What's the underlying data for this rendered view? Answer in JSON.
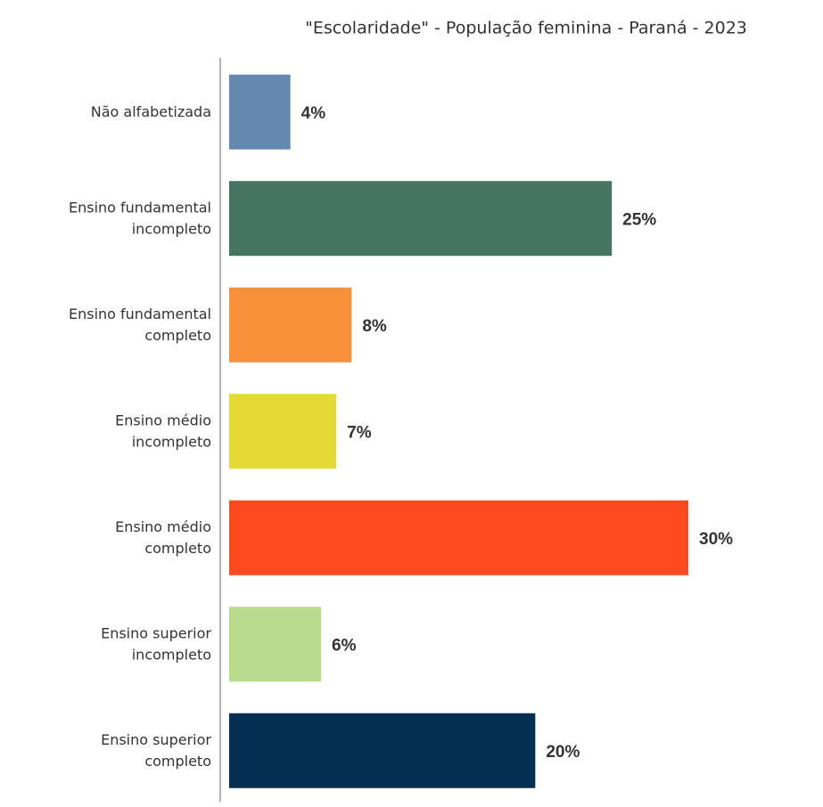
{
  "chart_data": {
    "type": "bar",
    "orientation": "horizontal",
    "title": "\"Escolaridade\" - População feminina - Paraná - 2023",
    "categories": [
      "Não alfabetizada",
      "Ensino fundamental\nincompleto",
      "Ensino fundamental\ncompleto",
      "Ensino médio\nincompleto",
      "Ensino médio\ncompleto",
      "Ensino superior\nincompleto",
      "Ensino superior\ncompleto"
    ],
    "values": [
      4,
      25,
      8,
      7,
      30,
      6,
      20
    ],
    "value_labels": [
      "4%",
      "25%",
      "8%",
      "7%",
      "30%",
      "6%",
      "20%"
    ],
    "colors": [
      "#6588b1",
      "#467462",
      "#f9913a",
      "#e5d936",
      "#ff4a1f",
      "#b8db8e",
      "#022f52"
    ]
  }
}
